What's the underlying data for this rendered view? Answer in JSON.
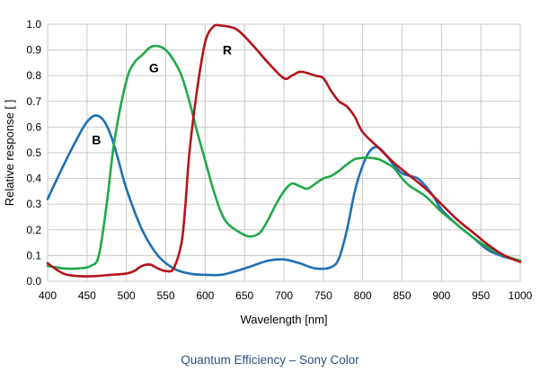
{
  "caption": "Quantum Efficiency – Sony Color",
  "chart_data": {
    "type": "line",
    "title": "",
    "xlabel": "Wavelength [nm]",
    "ylabel": "Relative response [ ]",
    "xlim": [
      400,
      1000
    ],
    "ylim": [
      0,
      1.0
    ],
    "xticks": [
      400,
      450,
      500,
      550,
      600,
      650,
      700,
      750,
      800,
      850,
      900,
      950,
      1000
    ],
    "xtick_labels": [
      "400",
      "450",
      "500",
      "550",
      "600",
      "650",
      "700",
      "750",
      "800",
      "850",
      "900",
      "950",
      "1000"
    ],
    "yticks": [
      0,
      0.1,
      0.2,
      0.3,
      0.4,
      0.5,
      0.6,
      0.7,
      0.8,
      0.9,
      1.0
    ],
    "ytick_labels": [
      "0.0",
      "0.1",
      "0.2",
      "0.3",
      "0.4",
      "0.5",
      "0.6",
      "0.7",
      "0.8",
      "0.9",
      "1.0"
    ],
    "grid": true,
    "series": [
      {
        "name": "B",
        "color": "#1f6fb4",
        "label_at": [
          462,
          0.55
        ],
        "x": [
          400,
          420,
          440,
          450,
          460,
          470,
          480,
          490,
          500,
          520,
          540,
          560,
          580,
          600,
          620,
          640,
          660,
          680,
          700,
          720,
          740,
          760,
          770,
          780,
          790,
          800,
          810,
          820,
          830,
          840,
          850,
          860,
          870,
          880,
          890,
          900,
          920,
          940,
          960,
          980,
          1000
        ],
        "y": [
          0.32,
          0.45,
          0.57,
          0.62,
          0.645,
          0.63,
          0.57,
          0.47,
          0.36,
          0.2,
          0.1,
          0.05,
          0.03,
          0.025,
          0.025,
          0.04,
          0.06,
          0.08,
          0.085,
          0.07,
          0.05,
          0.055,
          0.09,
          0.2,
          0.35,
          0.45,
          0.51,
          0.52,
          0.49,
          0.45,
          0.42,
          0.41,
          0.4,
          0.37,
          0.33,
          0.28,
          0.22,
          0.17,
          0.12,
          0.095,
          0.08
        ]
      },
      {
        "name": "G",
        "color": "#22a84a",
        "label_at": [
          535,
          0.83
        ],
        "x": [
          400,
          420,
          440,
          455,
          465,
          475,
          485,
          500,
          510,
          520,
          530,
          540,
          550,
          560,
          570,
          580,
          590,
          600,
          610,
          620,
          630,
          650,
          660,
          670,
          680,
          690,
          700,
          710,
          720,
          730,
          740,
          750,
          760,
          770,
          780,
          790,
          800,
          810,
          820,
          830,
          840,
          850,
          860,
          880,
          900,
          920,
          940,
          960,
          980,
          1000
        ],
        "y": [
          0.06,
          0.05,
          0.05,
          0.06,
          0.1,
          0.3,
          0.55,
          0.78,
          0.85,
          0.88,
          0.91,
          0.915,
          0.9,
          0.86,
          0.8,
          0.7,
          0.58,
          0.47,
          0.36,
          0.27,
          0.22,
          0.18,
          0.175,
          0.19,
          0.24,
          0.3,
          0.35,
          0.38,
          0.37,
          0.36,
          0.38,
          0.4,
          0.41,
          0.43,
          0.455,
          0.475,
          0.48,
          0.48,
          0.475,
          0.46,
          0.44,
          0.4,
          0.37,
          0.33,
          0.27,
          0.22,
          0.17,
          0.13,
          0.1,
          0.08
        ]
      },
      {
        "name": "R",
        "color": "#b5131b",
        "label_at": [
          628,
          0.9
        ],
        "x": [
          400,
          420,
          440,
          460,
          480,
          500,
          510,
          520,
          530,
          540,
          550,
          560,
          570,
          575,
          580,
          590,
          600,
          610,
          620,
          640,
          660,
          680,
          700,
          710,
          720,
          730,
          740,
          750,
          760,
          770,
          780,
          790,
          800,
          820,
          840,
          860,
          880,
          900,
          920,
          940,
          960,
          980,
          1000
        ],
        "y": [
          0.07,
          0.03,
          0.02,
          0.02,
          0.025,
          0.03,
          0.04,
          0.06,
          0.065,
          0.05,
          0.04,
          0.05,
          0.15,
          0.3,
          0.5,
          0.75,
          0.93,
          0.99,
          0.995,
          0.98,
          0.92,
          0.85,
          0.79,
          0.8,
          0.815,
          0.81,
          0.8,
          0.79,
          0.74,
          0.7,
          0.68,
          0.64,
          0.58,
          0.52,
          0.46,
          0.41,
          0.36,
          0.3,
          0.24,
          0.19,
          0.14,
          0.1,
          0.075
        ]
      }
    ]
  }
}
